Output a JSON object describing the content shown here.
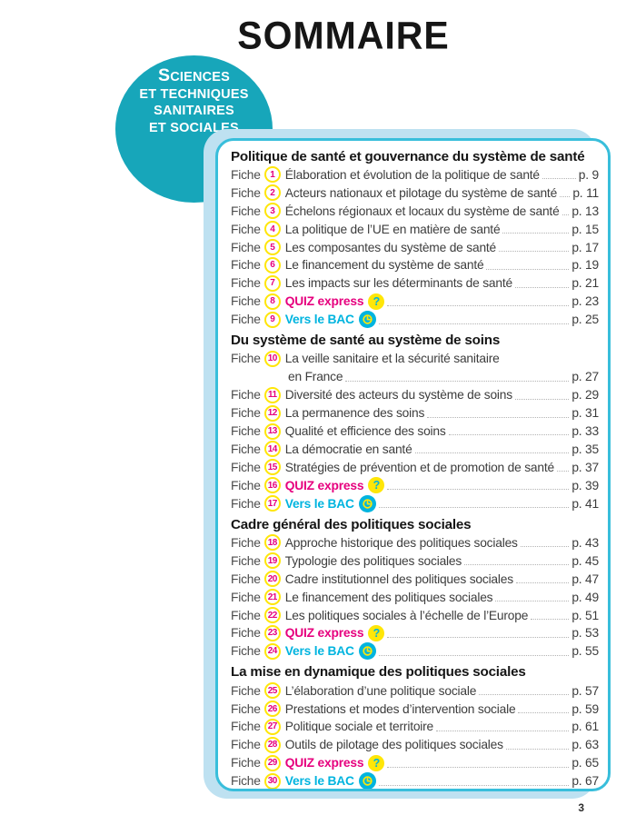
{
  "page": {
    "title": "SOMMAIRE",
    "folio": "3",
    "item_label": "Fiche"
  },
  "subject_badge": {
    "lines": [
      "SCIENCES",
      "ET TECHNIQUES",
      "SANITAIRES",
      "ET SOCIALES"
    ]
  },
  "colors": {
    "teal_circle": "#17a6ba",
    "card_border": "#38bedb",
    "card_shadow": "#bee1f1",
    "magenta": "#e6007e",
    "yellow": "#ffe608",
    "cyan": "#00b4df",
    "text": "#3d3d3d"
  },
  "icons": {
    "quiz": "question-mark",
    "bac": "clock"
  },
  "toc": {
    "sections": [
      {
        "heading": "Politique de santé et gouvernance du système de santé",
        "items": [
          {
            "num": "1",
            "title": "Élaboration et évolution de la politique de santé",
            "page": "p. 9"
          },
          {
            "num": "2",
            "title": "Acteurs nationaux et pilotage du système de santé",
            "page": "p. 11"
          },
          {
            "num": "3",
            "title": "Échelons régionaux et locaux du système de santé",
            "page": "p. 13"
          },
          {
            "num": "4",
            "title": "La politique de l’UE en matière de santé",
            "page": "p. 15"
          },
          {
            "num": "5",
            "title": "Les composantes du système de santé",
            "page": "p. 17"
          },
          {
            "num": "6",
            "title": "Le financement du système de santé",
            "page": "p. 19"
          },
          {
            "num": "7",
            "title": "Les impacts sur les déterminants de santé",
            "page": "p. 21"
          },
          {
            "num": "8",
            "title": "QUIZ express",
            "page": "p. 23",
            "type": "quiz"
          },
          {
            "num": "9",
            "title": "Vers le BAC",
            "page": "p. 25",
            "type": "bac"
          }
        ]
      },
      {
        "heading": "Du système de santé au système de soins",
        "items": [
          {
            "num": "10",
            "title": "La veille sanitaire et la sécurité sanitaire",
            "title2": "en France",
            "page": "p. 27"
          },
          {
            "num": "11",
            "title": "Diversité des acteurs du système de soins",
            "page": "p. 29"
          },
          {
            "num": "12",
            "title": "La permanence des soins",
            "page": "p. 31"
          },
          {
            "num": "13",
            "title": "Qualité et efficience des soins",
            "page": "p. 33"
          },
          {
            "num": "14",
            "title": "La démocratie en santé",
            "page": "p. 35"
          },
          {
            "num": "15",
            "title": "Stratégies de prévention et de promotion de santé",
            "page": "p. 37"
          },
          {
            "num": "16",
            "title": "QUIZ express",
            "page": "p. 39",
            "type": "quiz"
          },
          {
            "num": "17",
            "title": "Vers le BAC",
            "page": "p. 41",
            "type": "bac"
          }
        ]
      },
      {
        "heading": "Cadre général des politiques sociales",
        "items": [
          {
            "num": "18",
            "title": "Approche historique des politiques sociales",
            "page": "p. 43"
          },
          {
            "num": "19",
            "title": "Typologie des politiques sociales",
            "page": "p. 45"
          },
          {
            "num": "20",
            "title": "Cadre institutionnel des politiques sociales",
            "page": "p. 47"
          },
          {
            "num": "21",
            "title": "Le financement des politiques sociales",
            "page": "p. 49"
          },
          {
            "num": "22",
            "title": "Les politiques sociales à l’échelle de l’Europe",
            "page": "p. 51"
          },
          {
            "num": "23",
            "title": "QUIZ express",
            "page": "p. 53",
            "type": "quiz"
          },
          {
            "num": "24",
            "title": "Vers le BAC",
            "page": "p. 55",
            "type": "bac"
          }
        ]
      },
      {
        "heading": "La mise en dynamique des politiques sociales",
        "items": [
          {
            "num": "25",
            "title": "L’élaboration d’une politique sociale",
            "page": "p. 57"
          },
          {
            "num": "26",
            "title": "Prestations et modes d’intervention sociale",
            "page": "p. 59"
          },
          {
            "num": "27",
            "title": "Politique sociale et territoire",
            "page": "p. 61"
          },
          {
            "num": "28",
            "title": "Outils de pilotage des politiques sociales",
            "page": "p. 63"
          },
          {
            "num": "29",
            "title": "QUIZ express",
            "page": "p. 65",
            "type": "quiz"
          },
          {
            "num": "30",
            "title": "Vers le BAC",
            "page": "p. 67",
            "type": "bac"
          }
        ]
      }
    ]
  }
}
